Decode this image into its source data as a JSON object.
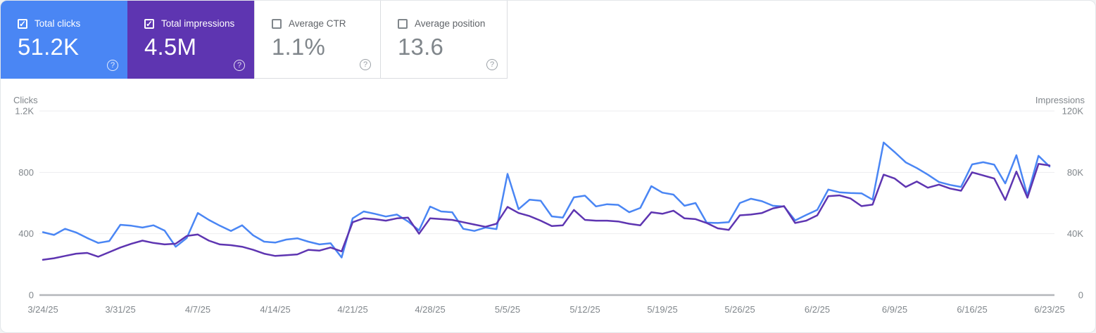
{
  "icons": {
    "check": "✓",
    "help": "?"
  },
  "colors": {
    "clicks_blue": "#4a86f4",
    "impressions_purple": "#5e35b1",
    "gridline": "#ededef",
    "baseline": "#b3b6ba",
    "axis_text": "#80868b"
  },
  "cards": [
    {
      "label": "Total clicks",
      "value": "51.2K",
      "checked": true,
      "bg": "#4a86f4"
    },
    {
      "label": "Total impressions",
      "value": "4.5M",
      "checked": true,
      "bg": "#5e35b1"
    },
    {
      "label": "Average CTR",
      "value": "1.1%",
      "checked": false,
      "bg": null
    },
    {
      "label": "Average position",
      "value": "13.6",
      "checked": false,
      "bg": null
    }
  ],
  "chart_data": {
    "type": "line",
    "x_tick_labels": [
      "3/24/25",
      "3/31/25",
      "4/7/25",
      "4/14/25",
      "4/21/25",
      "4/28/25",
      "5/5/25",
      "5/12/25",
      "5/19/25",
      "5/26/25",
      "6/2/25",
      "6/9/25",
      "6/16/25",
      "6/23/25"
    ],
    "left_axis": {
      "label": "Clicks",
      "ticks": [
        "0",
        "400",
        "800",
        "1.2K"
      ],
      "max": 1200
    },
    "right_axis": {
      "label": "Impressions",
      "ticks": [
        "0",
        "40K",
        "80K",
        "120K"
      ],
      "max": 120000
    },
    "grid": true,
    "legend_position": "none",
    "series": [
      {
        "name": "Clicks",
        "axis": "left",
        "color": "#4a86f4",
        "values": [
          410,
          392,
          432,
          408,
          372,
          340,
          352,
          458,
          452,
          440,
          455,
          420,
          315,
          372,
          535,
          490,
          452,
          418,
          455,
          390,
          348,
          342,
          362,
          370,
          348,
          330,
          338,
          245,
          500,
          545,
          530,
          512,
          525,
          480,
          422,
          577,
          545,
          540,
          432,
          418,
          440,
          430,
          790,
          560,
          622,
          615,
          513,
          505,
          637,
          648,
          578,
          592,
          588,
          540,
          568,
          710,
          668,
          655,
          582,
          600,
          472,
          470,
          475,
          600,
          628,
          612,
          582,
          577,
          487,
          522,
          555,
          688,
          670,
          665,
          663,
          622,
          995,
          932,
          865,
          828,
          785,
          737,
          718,
          705,
          852,
          866,
          850,
          728,
          912,
          648,
          908,
          838
        ]
      },
      {
        "name": "Impressions",
        "axis": "right",
        "color": "#5e35b1",
        "values": [
          23000,
          24000,
          25500,
          27000,
          27500,
          25000,
          28000,
          31000,
          33500,
          35500,
          34000,
          33000,
          33500,
          38500,
          39500,
          35500,
          33000,
          32500,
          31500,
          29500,
          27000,
          25500,
          26000,
          26500,
          29500,
          29000,
          31000,
          28500,
          47500,
          50000,
          49500,
          48500,
          50000,
          50500,
          40000,
          50000,
          49500,
          49000,
          47500,
          46000,
          44500,
          46500,
          57500,
          53500,
          51500,
          48500,
          45000,
          45500,
          55500,
          49000,
          48500,
          48500,
          48000,
          46500,
          45500,
          54000,
          53000,
          55000,
          50000,
          49500,
          47000,
          43500,
          42500,
          52000,
          52500,
          53500,
          56500,
          58000,
          47000,
          48500,
          52000,
          64500,
          65000,
          63000,
          58000,
          59000,
          78500,
          76000,
          70500,
          74000,
          70000,
          72000,
          69500,
          68000,
          80000,
          78000,
          76000,
          62000,
          80500,
          63500,
          85500,
          84500
        ]
      }
    ]
  }
}
